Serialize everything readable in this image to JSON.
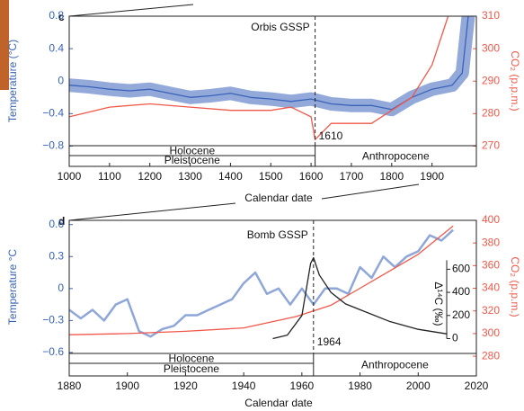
{
  "chart_data": [
    {
      "type": "line",
      "panel_label": "c",
      "x_label": "Calendar date",
      "y_label": "Temperature (°C)",
      "y2_label": "CO₂ (p.p.m.)",
      "xlim": [
        1000,
        2010
      ],
      "xticks": [
        1000,
        1100,
        1200,
        1300,
        1400,
        1500,
        1600,
        1700,
        1800,
        1900
      ],
      "ylim": [
        -1.05,
        0.8
      ],
      "yticks": [
        {
          "value": -0.8,
          "label": "−0.8"
        },
        {
          "value": -0.4,
          "label": "−0.4"
        },
        0,
        0.4,
        0.8
      ],
      "y2lim": [
        263.75,
        310
      ],
      "y2ticks": [
        270,
        280,
        290,
        300,
        310
      ],
      "series": [
        {
          "color": "#3a63b8",
          "band_color": "#93a9da",
          "axis": "y",
          "x": [
            1000,
            1050,
            1100,
            1150,
            1200,
            1250,
            1300,
            1350,
            1400,
            1450,
            1500,
            1550,
            1600,
            1650,
            1700,
            1750,
            1800,
            1850,
            1900,
            1950,
            1975,
            1990
          ],
          "values": [
            -0.05,
            -0.07,
            -0.1,
            -0.12,
            -0.1,
            -0.15,
            -0.2,
            -0.18,
            -0.15,
            -0.2,
            -0.22,
            -0.25,
            -0.22,
            -0.28,
            -0.3,
            -0.3,
            -0.35,
            -0.2,
            -0.1,
            -0.05,
            0.1,
            0.8
          ]
        },
        {
          "color": "#f0584a",
          "axis": "y2",
          "x": [
            1000,
            1100,
            1200,
            1300,
            1400,
            1500,
            1550,
            1600,
            1610,
            1650,
            1700,
            1750,
            1800,
            1850,
            1900,
            1940
          ],
          "values": [
            279,
            282,
            283,
            282,
            281,
            281,
            282,
            279,
            272,
            277,
            277,
            277,
            281,
            285,
            295,
            310
          ]
        }
      ],
      "gssp": {
        "label": "Orbis GSSP",
        "x": 1610
      },
      "epochs": {
        "upper": "Holocene",
        "lower": "Pleistocene",
        "right": "Anthropocene"
      }
    },
    {
      "type": "line",
      "panel_label": "d",
      "x_label": "Calendar date",
      "y_label": "Temperature °C",
      "y2_label": "CO₂ (p.p.m.)",
      "y3_label": "Δ¹⁴C (‰)",
      "xlim": [
        1880,
        2020
      ],
      "xticks": [
        1880,
        1900,
        1920,
        1940,
        1960,
        1980,
        2000,
        2020
      ],
      "ylim": [
        -0.82,
        0.64
      ],
      "yticks": [
        {
          "value": -0.6,
          "label": "−0.6"
        },
        {
          "value": -0.3,
          "label": "−0.3"
        },
        0,
        0.3,
        0.6
      ],
      "y2lim": [
        262.6,
        400
      ],
      "y2ticks": [
        280,
        300,
        320,
        340,
        360,
        380,
        400
      ],
      "y3lim": [
        -323,
        1023
      ],
      "y3ticks": [
        0,
        200,
        400,
        600
      ],
      "series": [
        {
          "color": "#8ea6d8",
          "axis": "y",
          "x": [
            1880,
            1884,
            1888,
            1892,
            1896,
            1900,
            1904,
            1908,
            1912,
            1916,
            1920,
            1924,
            1928,
            1932,
            1936,
            1940,
            1944,
            1948,
            1952,
            1956,
            1960,
            1964,
            1968,
            1972,
            1976,
            1980,
            1984,
            1988,
            1992,
            1996,
            2000,
            2004,
            2008,
            2012
          ],
          "values": [
            -0.2,
            -0.28,
            -0.2,
            -0.3,
            -0.15,
            -0.1,
            -0.4,
            -0.45,
            -0.38,
            -0.35,
            -0.25,
            -0.25,
            -0.2,
            -0.15,
            -0.1,
            0.05,
            0.15,
            -0.05,
            0.0,
            -0.15,
            0.0,
            -0.15,
            0.0,
            0.0,
            -0.05,
            0.2,
            0.1,
            0.3,
            0.2,
            0.3,
            0.35,
            0.5,
            0.45,
            0.55
          ]
        },
        {
          "color": "#f0584a",
          "axis": "y2",
          "x": [
            1880,
            1900,
            1920,
            1940,
            1958,
            1970,
            1980,
            1990,
            2000,
            2012
          ],
          "values": [
            299,
            300,
            302,
            305,
            315,
            325,
            340,
            355,
            370,
            395
          ]
        },
        {
          "color": "#222222",
          "axis": "y3",
          "x": [
            1950,
            1955,
            1960,
            1963,
            1964,
            1966,
            1970,
            1975,
            1980,
            1990,
            2000,
            2010
          ],
          "values": [
            0,
            30,
            200,
            650,
            700,
            550,
            400,
            300,
            250,
            150,
            80,
            40
          ]
        }
      ],
      "gssp": {
        "label": "Bomb GSSP",
        "x": 1964
      },
      "epochs": {
        "upper": "Holocene",
        "lower": "Pleistocene",
        "right": "Anthropocene"
      }
    }
  ]
}
